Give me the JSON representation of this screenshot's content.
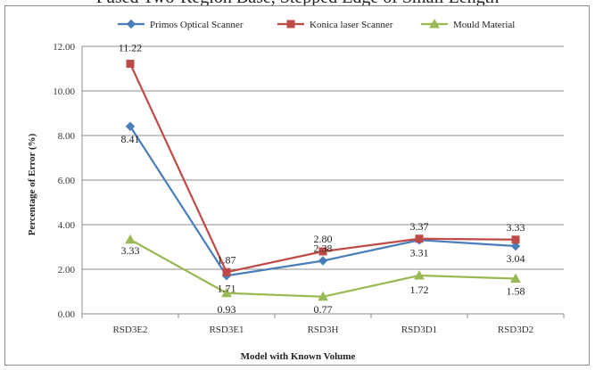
{
  "caption_fragment": "Fused Two-Region Base, Stepped Edge of Small Length",
  "chart_data": {
    "type": "line",
    "categories": [
      "RSD3E2",
      "RSD3E1",
      "RSD3H",
      "RSD3D1",
      "RSD3D2"
    ],
    "xlabel": "Model with Known Volume",
    "ylabel": "Percentage of Error (%)",
    "ylim": [
      0,
      12
    ],
    "yticks": [
      "0.00",
      "2.00",
      "4.00",
      "6.00",
      "8.00",
      "10.00",
      "12.00"
    ],
    "grid": "horizontal",
    "legend_position": "top",
    "series": [
      {
        "name": "Primos Optical Scanner",
        "color": "#4a7ebb",
        "marker": "diamond",
        "values": [
          8.41,
          1.71,
          2.38,
          3.31,
          3.04
        ],
        "labels": [
          "8.41",
          "1.71",
          "2.38",
          "3.31",
          "3.04"
        ]
      },
      {
        "name": "Konica laser Scanner",
        "color": "#be4b48",
        "marker": "square",
        "values": [
          11.22,
          1.87,
          2.8,
          3.37,
          3.33
        ],
        "labels": [
          "11.22",
          "1.87",
          "2.80",
          "3.37",
          "3.33"
        ]
      },
      {
        "name": "Mould Material",
        "color": "#98b954",
        "marker": "triangle",
        "values": [
          3.33,
          0.93,
          0.77,
          1.72,
          1.58
        ],
        "labels": [
          "3.33",
          "0.93",
          "0.77",
          "1.72",
          "1.58"
        ]
      }
    ]
  }
}
